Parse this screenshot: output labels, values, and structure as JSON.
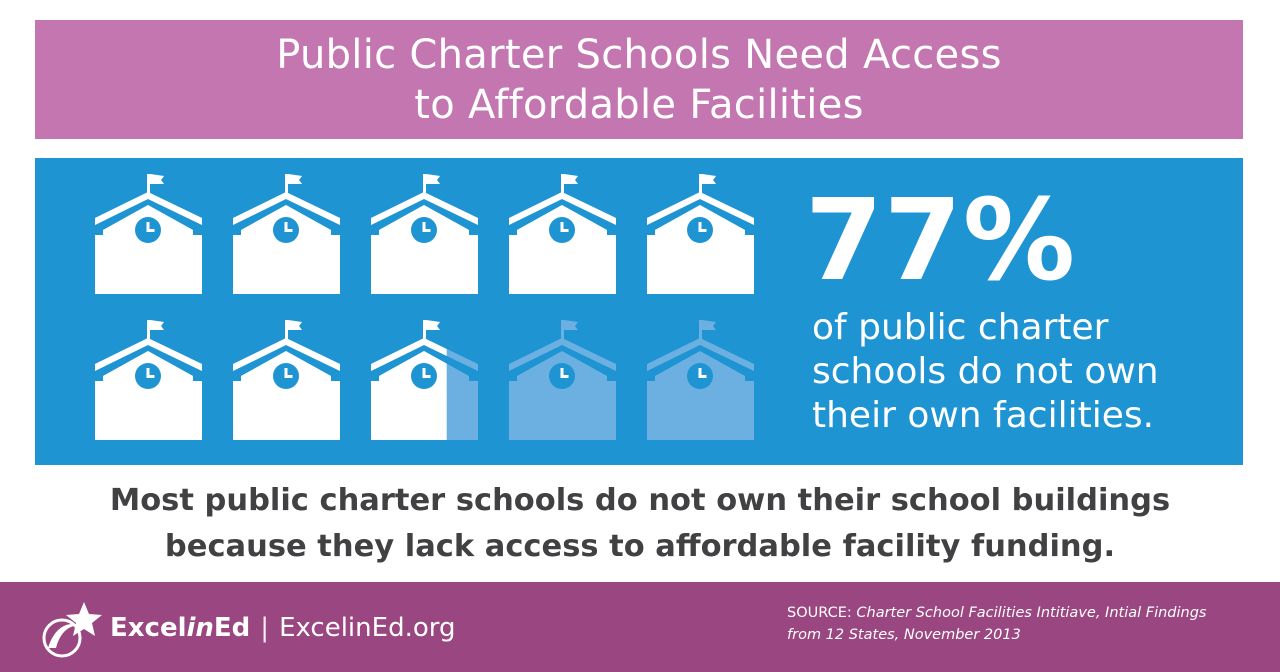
{
  "title": {
    "line1": "Public Charter Schools Need Access",
    "line2": "to Affordable Facilities"
  },
  "stat": {
    "percent_text": "77%",
    "description_lines": [
      "of public charter",
      "schools do not own",
      "their own facilities."
    ],
    "icon_total": 10,
    "filled_fraction": 0.77,
    "icon_name": "school-building-icon"
  },
  "subtitle": {
    "line1": "Most public charter schools do not own their school buildings",
    "line2": "because they lack access to affordable facility funding."
  },
  "footer": {
    "brand_excel": "Excel",
    "brand_in": "in",
    "brand_ed": "Ed",
    "separator": "|",
    "url": "ExcelinEd.org",
    "source_label": "SOURCE: ",
    "source_line1": "Charter School Facilities Intitiave, Intial Findings",
    "source_line2": "from 12 States, November 2013"
  },
  "colors": {
    "title_band": "#c476b0",
    "stat_panel": "#1e94d3",
    "icon_filled": "#ffffff",
    "icon_empty": "#6cb0e2",
    "subtitle_text": "#414042",
    "footer_band": "#9a4680"
  }
}
